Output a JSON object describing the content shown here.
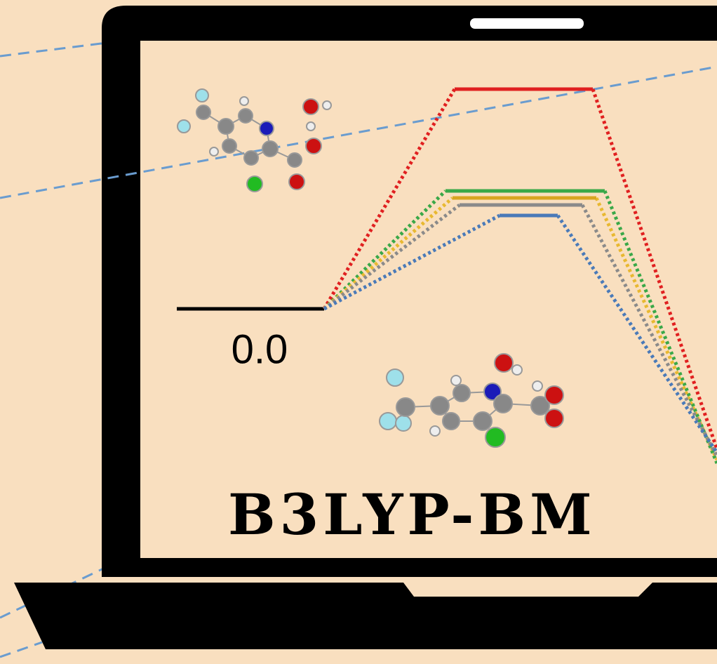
{
  "labels": {
    "reference_energy": "0.0",
    "method": "B3LYP-BM"
  }
}
